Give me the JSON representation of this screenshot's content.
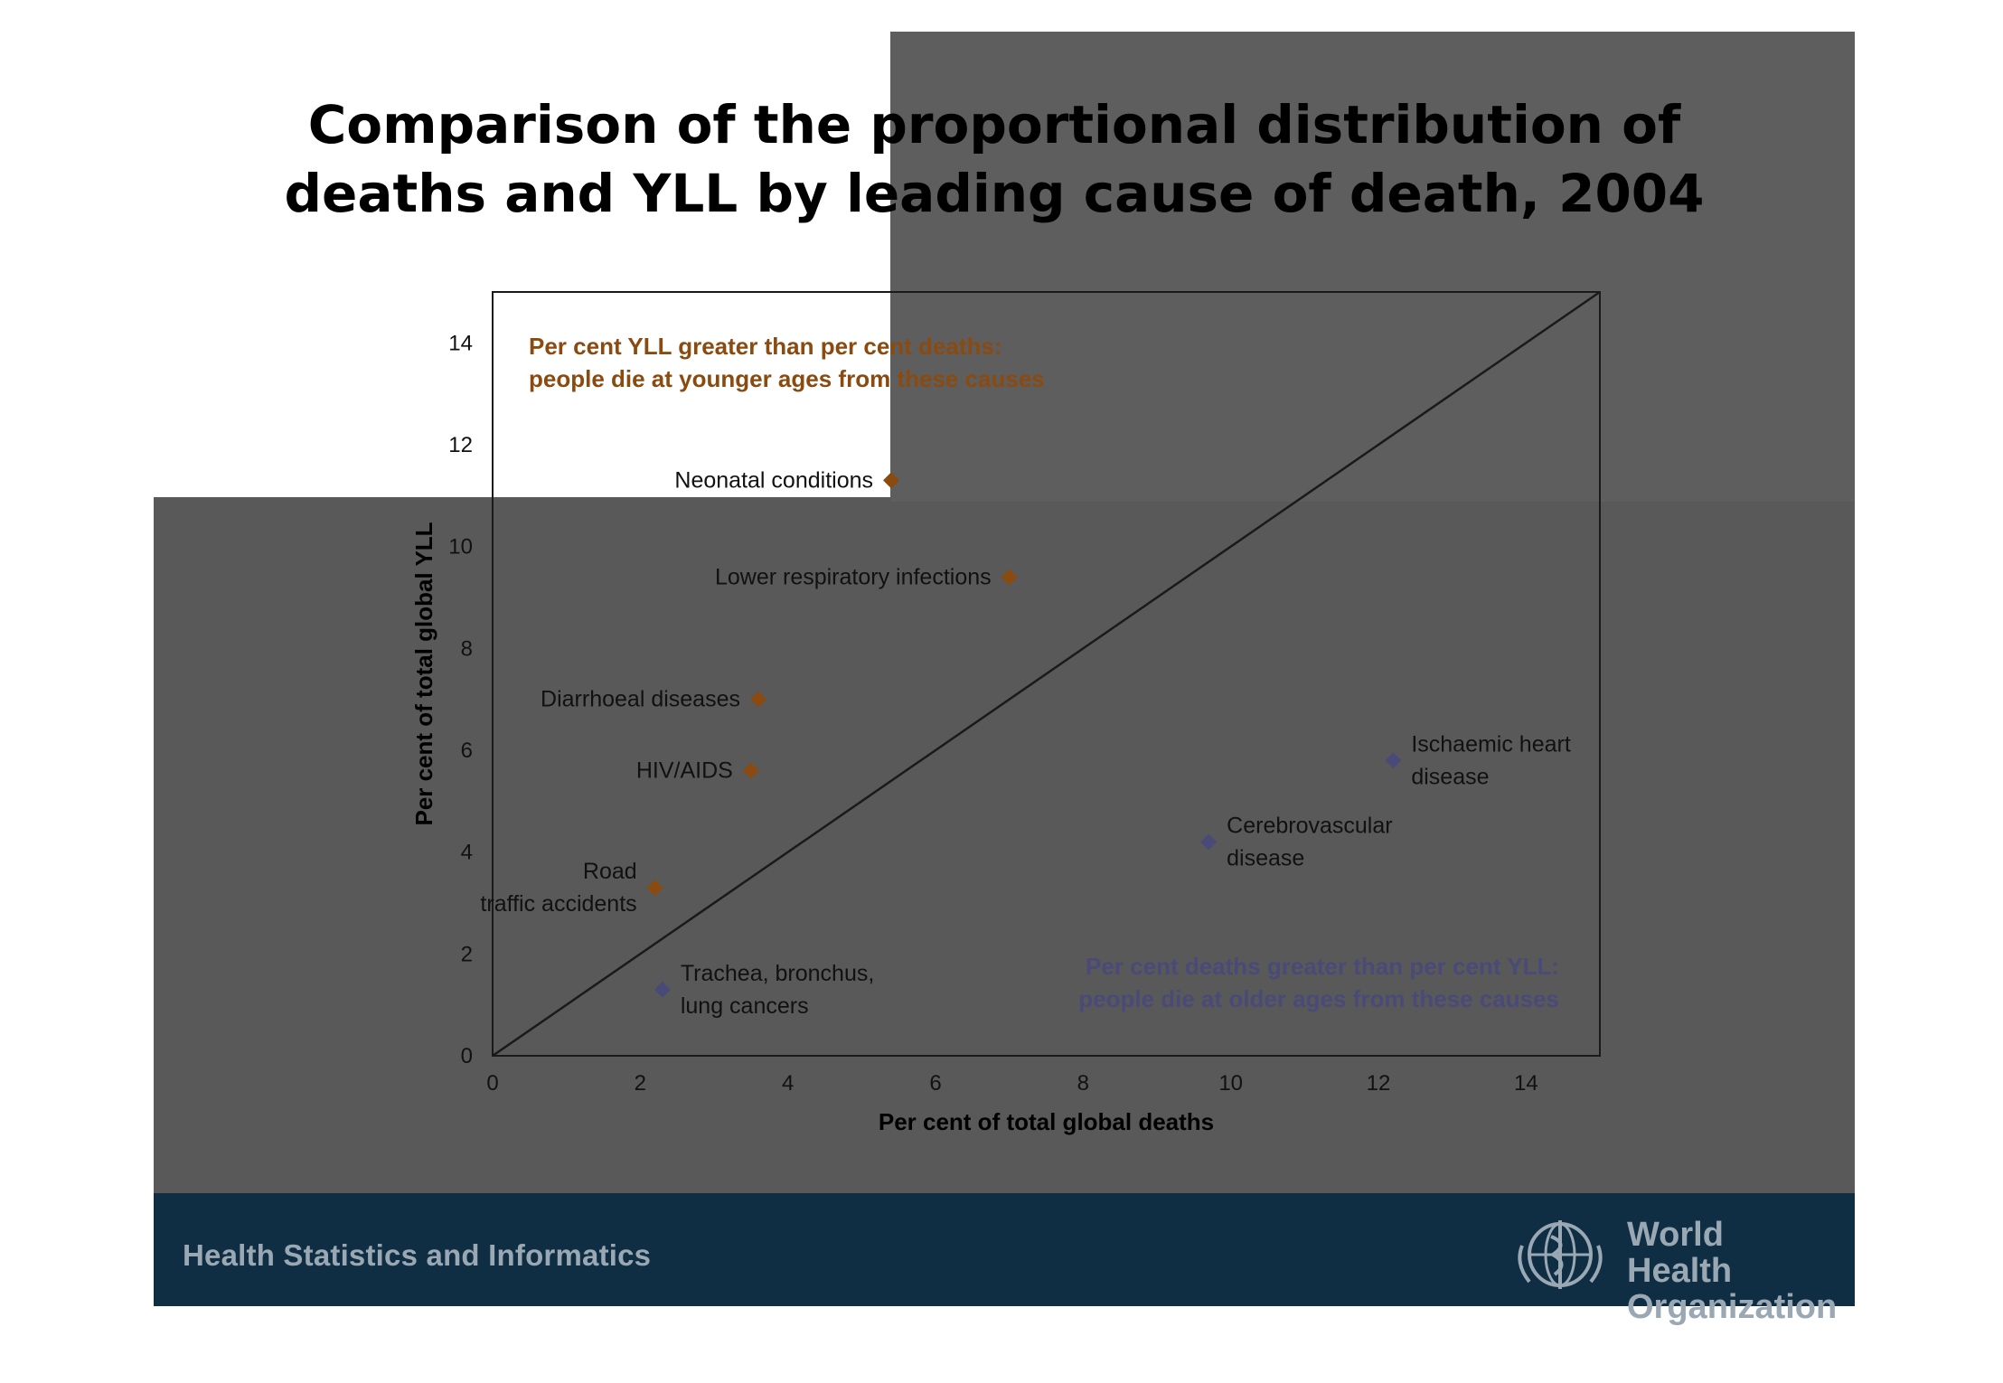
{
  "title_lines": [
    "Comparison of the proportional distribution of",
    "deaths and YLL by leading cause of death, 2004"
  ],
  "footer": {
    "left_text": "Health Statistics and Informatics",
    "org_line1": "World Health",
    "org_line2": "Organization"
  },
  "colors": {
    "young": "#8a4a10",
    "old": "#4a4a78",
    "annotation_young_start": "#f2a200",
    "footer_bg": "#0f2e44"
  },
  "chart_data": {
    "type": "scatter",
    "xlabel": "Per cent of total global deaths",
    "ylabel": "Per cent of total global YLL",
    "xlim": [
      0,
      15
    ],
    "ylim": [
      0,
      15
    ],
    "xticks": [
      0,
      2,
      4,
      6,
      8,
      10,
      12,
      14
    ],
    "yticks": [
      0,
      2,
      4,
      6,
      8,
      10,
      12,
      14
    ],
    "reference_line": "y = x",
    "points": [
      {
        "name": "Neonatal conditions",
        "lines": [
          "Neonatal conditions"
        ],
        "x": 5.4,
        "y": 11.3,
        "group": "young",
        "anchor": "left"
      },
      {
        "name": "Lower respiratory infections",
        "lines": [
          "Lower respiratory infections"
        ],
        "x": 7.0,
        "y": 9.4,
        "group": "young",
        "anchor": "left"
      },
      {
        "name": "Diarrhoeal diseases",
        "lines": [
          "Diarrhoeal diseases"
        ],
        "x": 3.6,
        "y": 7.0,
        "group": "young",
        "anchor": "left"
      },
      {
        "name": "HIV/AIDS",
        "lines": [
          "HIV/AIDS"
        ],
        "x": 3.5,
        "y": 5.6,
        "group": "young",
        "anchor": "left"
      },
      {
        "name": "Road traffic accidents",
        "lines": [
          "Road",
          "traffic accidents"
        ],
        "x": 2.2,
        "y": 3.3,
        "group": "young",
        "anchor": "left"
      },
      {
        "name": "Trachea, bronchus, lung cancers",
        "lines": [
          "Trachea, bronchus,",
          "lung cancers"
        ],
        "x": 2.3,
        "y": 1.3,
        "group": "old",
        "anchor": "right"
      },
      {
        "name": "Cerebrovascular disease",
        "lines": [
          "Cerebrovascular",
          "disease"
        ],
        "x": 9.7,
        "y": 4.2,
        "group": "old",
        "anchor": "right"
      },
      {
        "name": "Ischaemic heart disease",
        "lines": [
          "Ischaemic heart",
          "disease"
        ],
        "x": 12.2,
        "y": 5.8,
        "group": "old",
        "anchor": "right"
      }
    ],
    "annotations": [
      {
        "group": "young",
        "lines": [
          "Per cent YLL greater than per cent deaths:",
          "people die at younger ages from these causes"
        ],
        "position": "top-left"
      },
      {
        "group": "old",
        "lines": [
          "Per cent deaths greater than per cent YLL:",
          "people die at older ages from these causes"
        ],
        "position": "bottom-right"
      }
    ]
  }
}
